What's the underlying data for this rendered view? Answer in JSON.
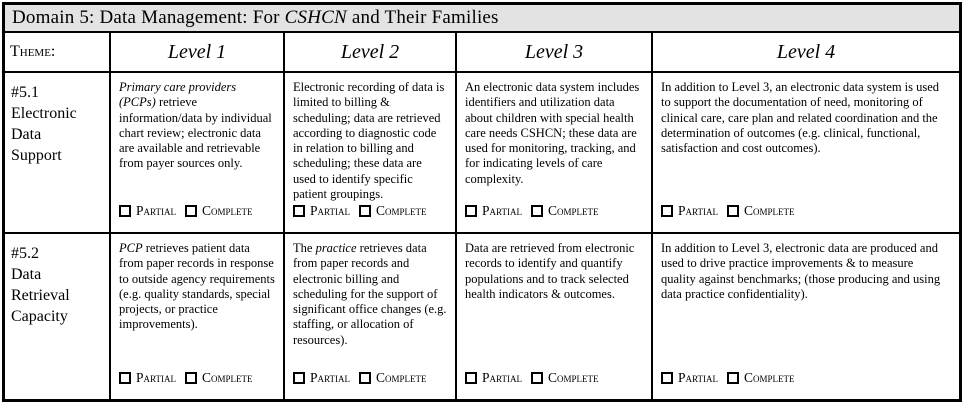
{
  "title": {
    "segments": [
      {
        "t": "Domain 5: Data Management: For ",
        "i": false
      },
      {
        "t": "CSHCN",
        "i": true
      },
      {
        "t": " and Their Families",
        "i": false
      }
    ]
  },
  "header": {
    "theme_label": "Theme:",
    "levels": [
      "Level 1",
      "Level 2",
      "Level 3",
      "Level 4"
    ]
  },
  "checkbox": {
    "partial_label": "Partial",
    "complete_label": "Complete"
  },
  "rows": [
    {
      "id": "#5.1",
      "theme_lines": "#5.1\nElectronic\nData\nSupport",
      "cells": [
        {
          "segments": [
            {
              "t": "Primary care providers (PCPs)",
              "i": true
            },
            {
              "t": " retrieve information/data by individual chart review; electronic data are available and retrievable from payer sources only.",
              "i": false
            }
          ]
        },
        {
          "segments": [
            {
              "t": "Electronic recording of data is limited to billing & scheduling; data are retrieved according to diagnostic code in relation to billing and scheduling; these data are used to identify specific patient groupings.",
              "i": false
            }
          ]
        },
        {
          "segments": [
            {
              "t": "An electronic data system includes identifiers and utilization data about children with special health care needs CSHCN; these data are used for monitoring, tracking, and for indicating levels of care complexity.",
              "i": false
            }
          ]
        },
        {
          "segments": [
            {
              "t": "In addition to Level 3, an electronic data system is used to support the documentation of need, monitoring of clinical care, care plan and related coordination and the determination of outcomes (e.g. clinical, functional, satisfaction and cost outcomes).",
              "i": false
            }
          ]
        }
      ]
    },
    {
      "id": "#5.2",
      "theme_lines": "#5.2\nData\nRetrieval\nCapacity",
      "cells": [
        {
          "segments": [
            {
              "t": "PCP",
              "i": true
            },
            {
              "t": " retrieves patient data from paper records in response to outside agency requirements (e.g. quality standards, special projects, or practice improvements).",
              "i": false
            }
          ]
        },
        {
          "segments": [
            {
              "t": "The ",
              "i": false
            },
            {
              "t": "practice",
              "i": true
            },
            {
              "t": " retrieves data from paper records and electronic billing and scheduling for the support of significant office changes (e.g. staffing, or allocation of resources).",
              "i": false
            }
          ]
        },
        {
          "segments": [
            {
              "t": "Data are retrieved from electronic records to identify and quantify populations and to track selected health indicators & outcomes.",
              "i": false
            }
          ]
        },
        {
          "segments": [
            {
              "t": "In addition to Level 3, electronic data are produced and used to drive practice improvements & to measure quality against benchmarks; (those producing and using data practice confidentiality).",
              "i": false
            }
          ]
        }
      ]
    }
  ],
  "colors": {
    "title_bar_bg": "#e3e3e3",
    "border": "#000000",
    "text": "#000000",
    "background": "#ffffff"
  }
}
